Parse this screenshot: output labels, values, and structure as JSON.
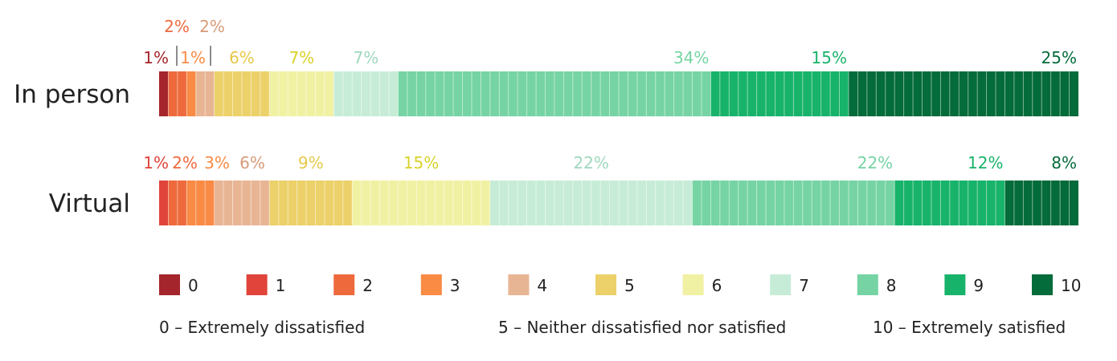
{
  "chart_data": {
    "type": "bar",
    "orientation": "horizontal",
    "stacked": true,
    "percent_stacked": true,
    "categories": [
      "In person",
      "Virtual"
    ],
    "series": [
      {
        "name": "0",
        "values": [
          1,
          0
        ]
      },
      {
        "name": "1",
        "values": [
          0,
          1
        ]
      },
      {
        "name": "2",
        "values": [
          2,
          2
        ]
      },
      {
        "name": "3",
        "values": [
          1,
          3
        ]
      },
      {
        "name": "4",
        "values": [
          2,
          6
        ]
      },
      {
        "name": "5",
        "values": [
          6,
          9
        ]
      },
      {
        "name": "6",
        "values": [
          7,
          15
        ]
      },
      {
        "name": "7",
        "values": [
          7,
          22
        ]
      },
      {
        "name": "8",
        "values": [
          34,
          22
        ]
      },
      {
        "name": "9",
        "values": [
          15,
          12
        ]
      },
      {
        "name": "10",
        "values": [
          25,
          8
        ]
      }
    ],
    "data_labels": [
      [
        "1%",
        "",
        "2%",
        "1%",
        "2%",
        "6%",
        "7%",
        "7%",
        "34%",
        "15%",
        "25%"
      ],
      [
        "",
        "1%",
        "2%",
        "3%",
        "6%",
        "9%",
        "15%",
        "22%",
        "22%",
        "12%",
        "8%"
      ]
    ],
    "xlim": [
      0,
      100
    ],
    "grid": false,
    "legend_position": "bottom",
    "colors": [
      "#a4262c",
      "#e0443b",
      "#ee6a3d",
      "#f98b45",
      "#e8b594",
      "#ecd16a",
      "#f1f1a4",
      "#c6ecd7",
      "#76d4a4",
      "#18b36a",
      "#046b3a"
    ],
    "label_colors": [
      "#a4262c",
      "#e0443b",
      "#ee6a3d",
      "#f98b45",
      "#d89a78",
      "#e6c84a",
      "#d8d22a",
      "#9fd8bd",
      "#76d4a4",
      "#18b36a",
      "#046b3a"
    ]
  },
  "scale_notes": {
    "low": "0 – Extremely dissatisfied",
    "mid": "5 – Neither dissatisfied nor satisfied",
    "high": "10 – Extremely satisfied"
  }
}
